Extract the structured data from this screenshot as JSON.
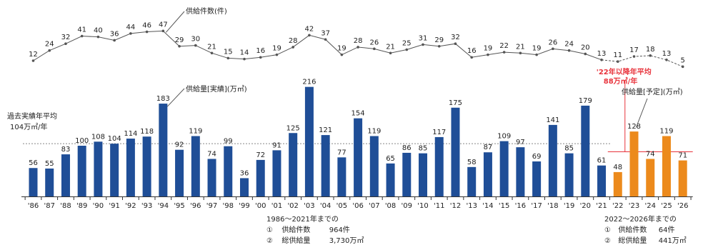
{
  "chart_data": {
    "type": "bar",
    "categories": [
      "'86",
      "'87",
      "'88",
      "'89",
      "'90",
      "'91",
      "'92",
      "'93",
      "'94",
      "'95",
      "'96",
      "'97",
      "'98",
      "'99",
      "'00",
      "'01",
      "'02",
      "'03",
      "'04",
      "'05",
      "'06",
      "'07",
      "'08",
      "'09",
      "'10",
      "'11",
      "'12",
      "'13",
      "'14",
      "'15",
      "'16",
      "'17",
      "'18",
      "'19",
      "'20",
      "'21",
      "'22",
      "'23",
      "'24",
      "'25",
      "'26"
    ],
    "series": [
      {
        "name": "供給量[実績](万㎡)",
        "kind": "bar",
        "color": "#1f4e97",
        "values": [
          56,
          55,
          83,
          100,
          108,
          104,
          114,
          118,
          183,
          92,
          119,
          74,
          99,
          36,
          72,
          91,
          125,
          216,
          121,
          77,
          154,
          119,
          65,
          86,
          85,
          117,
          175,
          58,
          87,
          109,
          97,
          69,
          141,
          85,
          179,
          61,
          null,
          null,
          null,
          null,
          null
        ]
      },
      {
        "name": "供給量[予定](万㎡)",
        "kind": "bar",
        "color": "#ec8a1c",
        "values": [
          null,
          null,
          null,
          null,
          null,
          null,
          null,
          null,
          null,
          null,
          null,
          null,
          null,
          null,
          null,
          null,
          null,
          null,
          null,
          null,
          null,
          null,
          null,
          null,
          null,
          null,
          null,
          null,
          null,
          null,
          null,
          null,
          null,
          null,
          null,
          null,
          48,
          128,
          74,
          119,
          71
        ]
      },
      {
        "name": "供給件数(件)",
        "kind": "line",
        "color": "#555555",
        "values": [
          12,
          24,
          32,
          41,
          40,
          36,
          44,
          46,
          47,
          29,
          30,
          21,
          15,
          14,
          16,
          19,
          28,
          42,
          37,
          19,
          28,
          26,
          21,
          25,
          31,
          29,
          32,
          16,
          19,
          22,
          21,
          19,
          26,
          24,
          20,
          13,
          11,
          17,
          18,
          13,
          5
        ]
      }
    ],
    "averages": [
      {
        "label_line1": "過去実績年平均",
        "label_line2": "104万㎡/年",
        "value": 104,
        "color": "#888888"
      },
      {
        "label_line1": "'22年以降年平均",
        "label_line2": "88万㎡/年",
        "value": 88,
        "color": "#e8333c"
      }
    ],
    "summary_actual": {
      "title": "1986～2021年までの",
      "rows": [
        {
          "mark": "①",
          "label": "供給件数",
          "value": "964件"
        },
        {
          "mark": "②",
          "label": "総供給量",
          "value": "3,730万㎡"
        }
      ]
    },
    "summary_plan": {
      "title": "2022～2026年までの",
      "rows": [
        {
          "mark": "①",
          "label": "供給件数",
          "value": "64件"
        },
        {
          "mark": "②",
          "label": "総供給量",
          "value": "441万㎡"
        }
      ]
    },
    "colors": {
      "axis": "#333333",
      "text": "#222222",
      "actual_line": "#555555",
      "plan_line": "#555555",
      "plan_avg": "#e8333c"
    }
  }
}
